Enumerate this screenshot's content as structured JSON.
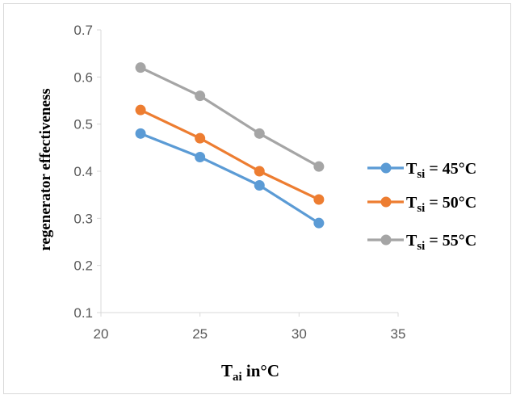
{
  "chart_data": {
    "type": "line",
    "title": "",
    "xlabel": {
      "main": "T",
      "sub": "ai",
      "rest": " in°C"
    },
    "ylabel": "regenerator effectiveness",
    "xlim": [
      20,
      35
    ],
    "ylim": [
      0.1,
      0.7
    ],
    "xticks": [
      "20",
      "25",
      "30",
      "35"
    ],
    "yticks": [
      "0.1",
      "0.2",
      "0.3",
      "0.4",
      "0.5",
      "0.6",
      "0.7"
    ],
    "grid": false,
    "legend_position": "right",
    "x": [
      22,
      25,
      28,
      31
    ],
    "series": [
      {
        "label_main": "T",
        "label_sub": "si",
        "label_rest": " = 45°C",
        "color": "#5b9bd5",
        "values": [
          0.48,
          0.43,
          0.37,
          0.29
        ]
      },
      {
        "label_main": "T",
        "label_sub": "si",
        "label_rest": " = 50°C",
        "color": "#ed7d31",
        "values": [
          0.53,
          0.47,
          0.4,
          0.34
        ]
      },
      {
        "label_main": "T",
        "label_sub": "si",
        "label_rest": " = 55°C",
        "color": "#a5a5a5",
        "values": [
          0.62,
          0.56,
          0.48,
          0.41
        ]
      }
    ]
  }
}
